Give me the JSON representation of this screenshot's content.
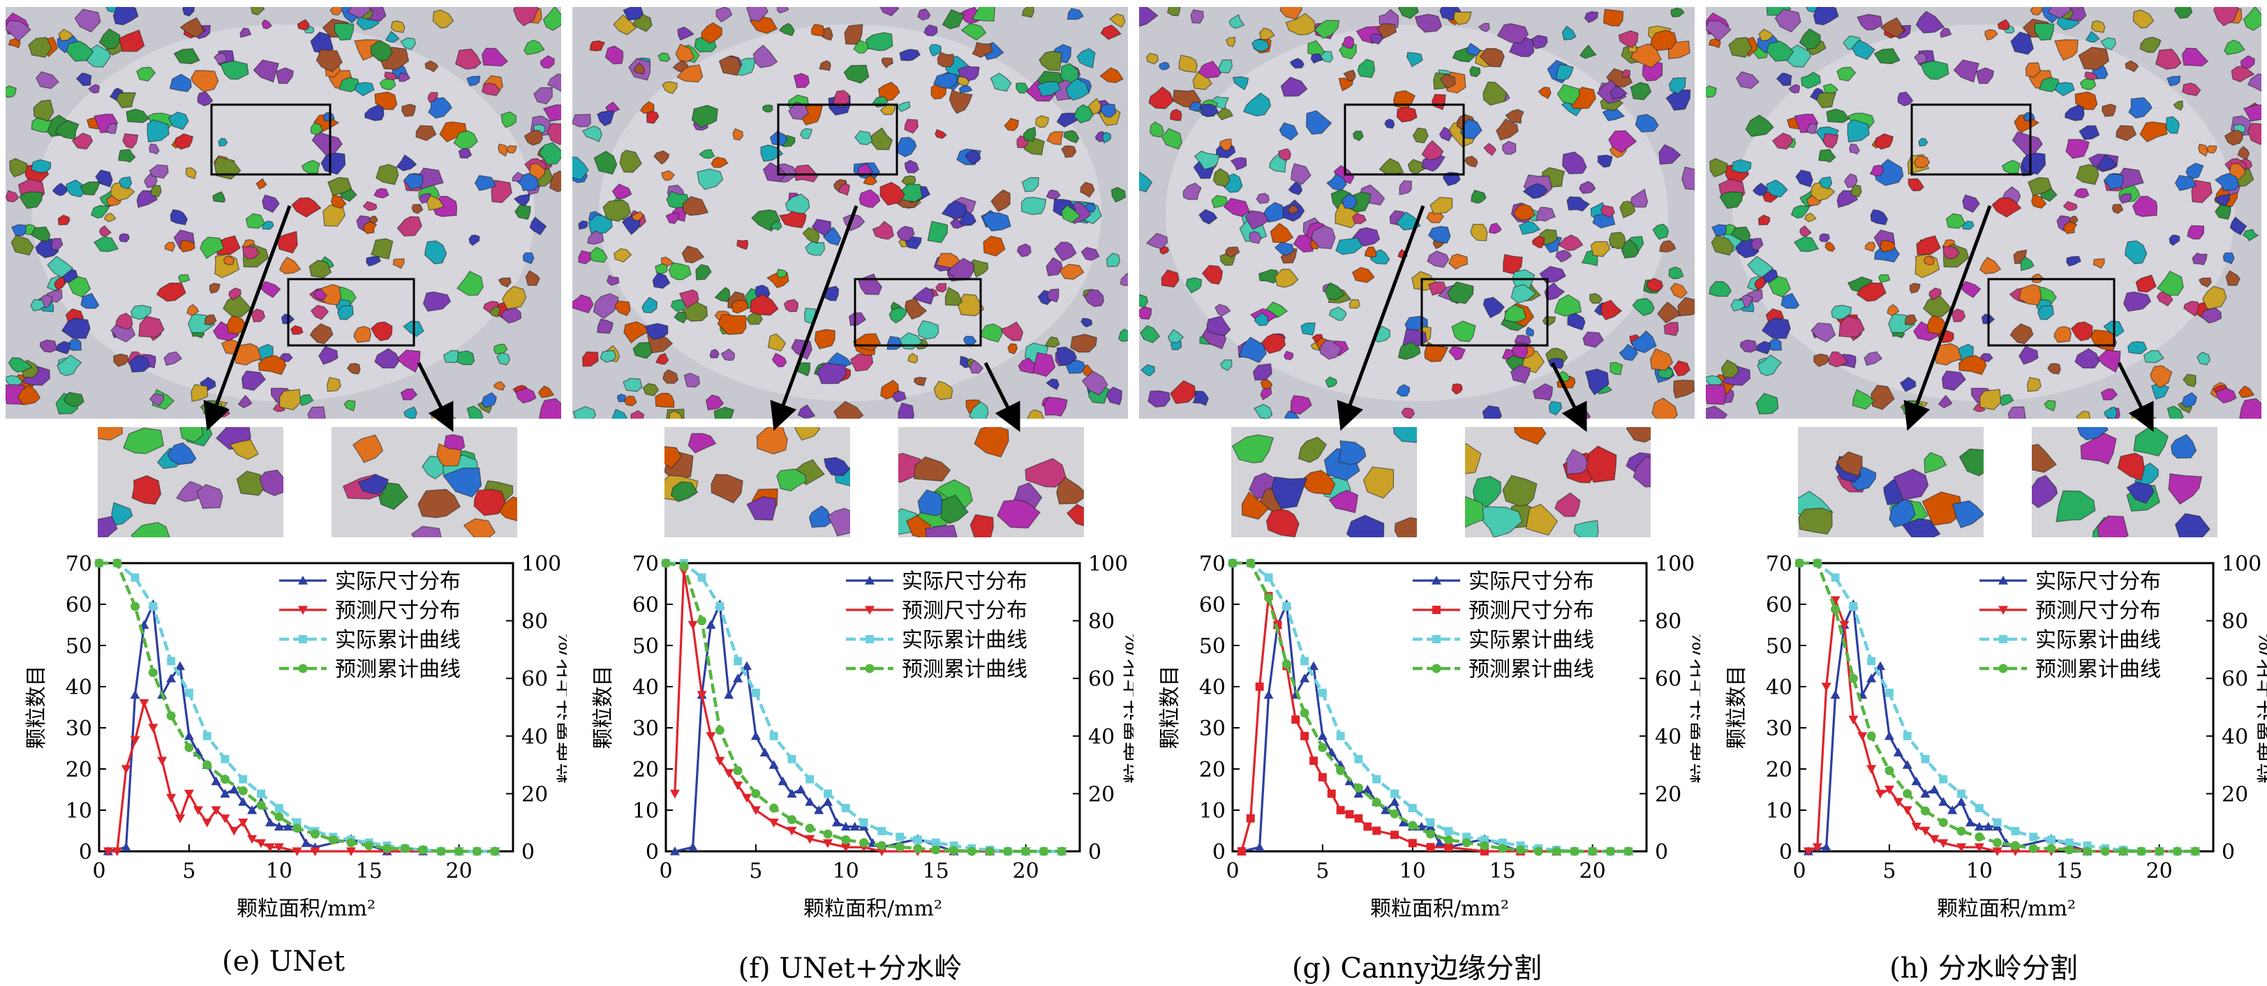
{
  "colors": {
    "actual_dist": "#2b3fa0",
    "pred_dist": "#e0232a",
    "actual_cum": "#6ccfdd",
    "pred_cum": "#55b540"
  },
  "chart_data": [
    {
      "type": "line",
      "caption": "(e) UNet",
      "xlabel": "颗粒面积/mm²",
      "ylabel": "颗粒数目",
      "ylabel_right": "粒度累计占比/%",
      "xlim": [
        0,
        23
      ],
      "ylim": [
        0,
        70
      ],
      "ylim_right": [
        0,
        100
      ],
      "xticks": [
        0,
        5,
        10,
        15,
        20
      ],
      "yticks": [
        0,
        10,
        20,
        30,
        40,
        50,
        60,
        70
      ],
      "yticks_right": [
        0,
        20,
        40,
        60,
        80,
        100
      ],
      "legend_position": "top-right",
      "grid": false,
      "series": [
        {
          "name": "实际尺寸分布",
          "axis": "left",
          "marker": "triangle-up",
          "x": [
            0.5,
            1.5,
            2,
            2.5,
            3,
            3.5,
            4,
            4.5,
            5,
            5.5,
            6,
            6.5,
            7,
            7.5,
            8,
            8.5,
            9,
            9.5,
            10,
            10.5,
            11,
            11.5,
            12,
            14,
            16,
            18,
            20,
            22
          ],
          "y": [
            0,
            1,
            38,
            55,
            60,
            38,
            42,
            45,
            28,
            24,
            21,
            17,
            14,
            15,
            12,
            10,
            12,
            7,
            6,
            6,
            6,
            2,
            1,
            3,
            0,
            0,
            0,
            0
          ]
        },
        {
          "name": "预测尺寸分布",
          "axis": "left",
          "marker": "triangle-down",
          "x": [
            0.5,
            1,
            1.5,
            2,
            2.5,
            3,
            3.5,
            4,
            4.5,
            5,
            5.5,
            6,
            6.5,
            7,
            7.5,
            8,
            8.5,
            9,
            9.5,
            10,
            11,
            12,
            14,
            16,
            18,
            20,
            22
          ],
          "y": [
            0,
            0,
            20,
            27,
            36,
            30,
            22,
            13,
            8,
            14,
            10,
            7,
            10,
            8,
            5,
            7,
            3,
            2,
            1,
            1,
            0,
            0,
            0,
            0,
            0,
            0,
            0
          ]
        },
        {
          "name": "实际累计曲线",
          "axis": "right",
          "marker": "square",
          "x": [
            0,
            1,
            2,
            3,
            4,
            5,
            6,
            7,
            8,
            9,
            10,
            11,
            12,
            13,
            14,
            15,
            16,
            17,
            18,
            19,
            20,
            21,
            22
          ],
          "y": [
            100,
            100,
            95,
            85,
            66,
            55,
            40,
            32,
            25,
            20,
            15,
            10,
            7,
            5,
            4,
            3,
            2,
            1,
            0.5,
            0,
            0,
            0,
            0
          ]
        },
        {
          "name": "预测累计曲线",
          "axis": "right",
          "marker": "circle",
          "x": [
            0,
            1,
            2,
            3,
            4,
            5,
            6,
            7,
            8,
            9,
            10,
            11,
            12,
            13,
            14,
            15,
            16,
            17,
            18,
            19,
            20,
            21,
            22
          ],
          "y": [
            100,
            100,
            85,
            62,
            47,
            36,
            30,
            25,
            21,
            16,
            12,
            8,
            6,
            4,
            3,
            2,
            1,
            1,
            0.5,
            0,
            0,
            0,
            0
          ]
        }
      ]
    },
    {
      "type": "line",
      "caption": "(f) UNet+分水岭",
      "xlabel": "颗粒面积/mm²",
      "ylabel": "颗粒数目",
      "ylabel_right": "粒度累计占比/%",
      "xlim": [
        0,
        23
      ],
      "ylim": [
        0,
        70
      ],
      "ylim_right": [
        0,
        100
      ],
      "xticks": [
        0,
        5,
        10,
        15,
        20
      ],
      "yticks": [
        0,
        10,
        20,
        30,
        40,
        50,
        60,
        70
      ],
      "yticks_right": [
        0,
        20,
        40,
        60,
        80,
        100
      ],
      "legend_position": "top-right",
      "grid": false,
      "series": [
        {
          "name": "实际尺寸分布",
          "axis": "left",
          "marker": "triangle-up",
          "x": [
            0.5,
            1.5,
            2,
            2.5,
            3,
            3.5,
            4,
            4.5,
            5,
            5.5,
            6,
            6.5,
            7,
            7.5,
            8,
            8.5,
            9,
            9.5,
            10,
            10.5,
            11,
            11.5,
            12,
            14,
            16,
            18,
            20,
            22
          ],
          "y": [
            0,
            1,
            38,
            55,
            60,
            38,
            42,
            45,
            28,
            24,
            21,
            17,
            14,
            15,
            12,
            10,
            12,
            7,
            6,
            6,
            6,
            2,
            1,
            3,
            0,
            0,
            0,
            0
          ]
        },
        {
          "name": "预测尺寸分布",
          "axis": "left",
          "marker": "triangle-down",
          "x": [
            0.5,
            1,
            1.5,
            2,
            2.5,
            3,
            3.5,
            4,
            4.5,
            5,
            6,
            7,
            8,
            9,
            10,
            11,
            12,
            14,
            16,
            18,
            20,
            22
          ],
          "y": [
            14,
            68,
            55,
            38,
            28,
            22,
            19,
            16,
            13,
            10,
            7,
            5,
            3,
            2,
            1,
            1,
            0,
            0,
            0,
            0,
            0,
            0
          ]
        },
        {
          "name": "实际累计曲线",
          "axis": "right",
          "marker": "square",
          "x": [
            0,
            1,
            2,
            3,
            4,
            5,
            6,
            7,
            8,
            9,
            10,
            11,
            12,
            13,
            14,
            15,
            16,
            17,
            18,
            19,
            20,
            21,
            22
          ],
          "y": [
            100,
            100,
            95,
            85,
            66,
            55,
            40,
            32,
            25,
            20,
            15,
            10,
            7,
            5,
            4,
            3,
            2,
            1,
            0.5,
            0,
            0,
            0,
            0
          ]
        },
        {
          "name": "预测累计曲线",
          "axis": "right",
          "marker": "circle",
          "x": [
            0,
            1,
            2,
            3,
            4,
            5,
            6,
            7,
            8,
            9,
            10,
            11,
            12,
            13,
            14,
            15,
            16,
            17,
            18,
            19,
            20,
            21,
            22
          ],
          "y": [
            100,
            99,
            80,
            42,
            28,
            20,
            15,
            11,
            8,
            6,
            4,
            3,
            2,
            1.5,
            1,
            0.5,
            0.3,
            0,
            0,
            0,
            0,
            0,
            0
          ]
        }
      ]
    },
    {
      "type": "line",
      "caption": "(g) Canny边缘分割",
      "xlabel": "颗粒面积/mm²",
      "ylabel": "颗粒数目",
      "ylabel_right": "粒度累计占比/%",
      "xlim": [
        0,
        23
      ],
      "ylim": [
        0,
        70
      ],
      "ylim_right": [
        0,
        100
      ],
      "xticks": [
        0,
        5,
        10,
        15,
        20
      ],
      "yticks": [
        0,
        10,
        20,
        30,
        40,
        50,
        60,
        70
      ],
      "yticks_right": [
        0,
        20,
        40,
        60,
        80,
        100
      ],
      "legend_position": "top-right",
      "grid": false,
      "series": [
        {
          "name": "实际尺寸分布",
          "axis": "left",
          "marker": "triangle-up",
          "x": [
            0.5,
            1.5,
            2,
            2.5,
            3,
            3.5,
            4,
            4.5,
            5,
            5.5,
            6,
            6.5,
            7,
            7.5,
            8,
            8.5,
            9,
            9.5,
            10,
            10.5,
            11,
            11.5,
            12,
            14,
            16,
            18,
            20,
            22
          ],
          "y": [
            0,
            1,
            38,
            55,
            60,
            38,
            42,
            45,
            28,
            24,
            21,
            17,
            14,
            15,
            12,
            10,
            12,
            7,
            6,
            6,
            6,
            2,
            1,
            3,
            0,
            0,
            0,
            0
          ]
        },
        {
          "name": "预测尺寸分布",
          "axis": "left",
          "marker": "square",
          "x": [
            0.5,
            1,
            1.5,
            2,
            2.5,
            3,
            3.5,
            4,
            4.5,
            5,
            5.5,
            6,
            6.5,
            7,
            7.5,
            8,
            9,
            10,
            11,
            12,
            14,
            16,
            18,
            20,
            22
          ],
          "y": [
            0,
            8,
            40,
            62,
            55,
            45,
            32,
            28,
            22,
            18,
            14,
            10,
            9,
            8,
            6,
            5,
            4,
            2,
            1,
            1,
            0,
            0,
            0,
            0,
            0
          ]
        },
        {
          "name": "实际累计曲线",
          "axis": "right",
          "marker": "square",
          "x": [
            0,
            1,
            2,
            3,
            4,
            5,
            6,
            7,
            8,
            9,
            10,
            11,
            12,
            13,
            14,
            15,
            16,
            17,
            18,
            19,
            20,
            21,
            22
          ],
          "y": [
            100,
            100,
            95,
            85,
            66,
            55,
            40,
            32,
            25,
            20,
            15,
            10,
            7,
            5,
            4,
            3,
            2,
            1,
            0.5,
            0,
            0,
            0,
            0
          ]
        },
        {
          "name": "预测累计曲线",
          "axis": "right",
          "marker": "circle",
          "x": [
            0,
            1,
            2,
            3,
            4,
            5,
            6,
            7,
            8,
            9,
            10,
            11,
            12,
            13,
            14,
            15,
            16,
            17,
            18,
            19,
            20,
            21,
            22
          ],
          "y": [
            100,
            100,
            88,
            65,
            48,
            36,
            28,
            22,
            17,
            13,
            9,
            6,
            4,
            3,
            2,
            1,
            0.5,
            0,
            0,
            0,
            0,
            0,
            0
          ]
        }
      ]
    },
    {
      "type": "line",
      "caption": "(h) 分水岭分割",
      "xlabel": "颗粒面积/mm²",
      "ylabel": "颗粒数目",
      "ylabel_right": "粒度累计占比/%",
      "xlim": [
        0,
        23
      ],
      "ylim": [
        0,
        70
      ],
      "ylim_right": [
        0,
        100
      ],
      "xticks": [
        0,
        5,
        10,
        15,
        20
      ],
      "yticks": [
        0,
        10,
        20,
        30,
        40,
        50,
        60,
        70
      ],
      "yticks_right": [
        0,
        20,
        40,
        60,
        80,
        100
      ],
      "legend_position": "top-right",
      "grid": false,
      "series": [
        {
          "name": "实际尺寸分布",
          "axis": "left",
          "marker": "triangle-up",
          "x": [
            0.5,
            1.5,
            2,
            2.5,
            3,
            3.5,
            4,
            4.5,
            5,
            5.5,
            6,
            6.5,
            7,
            7.5,
            8,
            8.5,
            9,
            9.5,
            10,
            10.5,
            11,
            11.5,
            12,
            14,
            16,
            18,
            20,
            22
          ],
          "y": [
            0,
            1,
            38,
            55,
            60,
            38,
            42,
            45,
            28,
            24,
            21,
            17,
            14,
            15,
            12,
            10,
            12,
            7,
            6,
            6,
            6,
            2,
            1,
            3,
            0,
            0,
            0,
            0
          ]
        },
        {
          "name": "预测尺寸分布",
          "axis": "left",
          "marker": "triangle-down",
          "x": [
            0.5,
            1,
            1.5,
            2,
            2.5,
            3,
            3.5,
            4,
            4.5,
            5,
            5.5,
            6,
            6.5,
            7,
            7.5,
            8,
            9,
            10,
            11,
            12,
            14,
            15,
            16,
            18,
            20,
            22
          ],
          "y": [
            0,
            1,
            40,
            61,
            55,
            32,
            28,
            20,
            14,
            15,
            12,
            10,
            6,
            5,
            3,
            2,
            1,
            1,
            0,
            0,
            0,
            1,
            0,
            0,
            0,
            0
          ]
        },
        {
          "name": "实际累计曲线",
          "axis": "right",
          "marker": "square",
          "x": [
            0,
            1,
            2,
            3,
            4,
            5,
            6,
            7,
            8,
            9,
            10,
            11,
            12,
            13,
            14,
            15,
            16,
            17,
            18,
            19,
            20,
            21,
            22
          ],
          "y": [
            100,
            100,
            95,
            85,
            66,
            55,
            40,
            32,
            25,
            20,
            15,
            10,
            7,
            5,
            4,
            3,
            2,
            1,
            0.5,
            0,
            0,
            0,
            0
          ]
        },
        {
          "name": "预测累计曲线",
          "axis": "right",
          "marker": "circle",
          "x": [
            0,
            1,
            2,
            3,
            4,
            5,
            6,
            7,
            8,
            9,
            10,
            11,
            12,
            13,
            14,
            15,
            16,
            17,
            18,
            19,
            20,
            21,
            22
          ],
          "y": [
            100,
            100,
            84,
            60,
            40,
            28,
            20,
            14,
            10,
            7,
            5,
            3,
            2,
            1,
            1,
            0.5,
            0,
            0,
            0,
            0,
            0,
            0,
            0
          ]
        }
      ]
    }
  ]
}
